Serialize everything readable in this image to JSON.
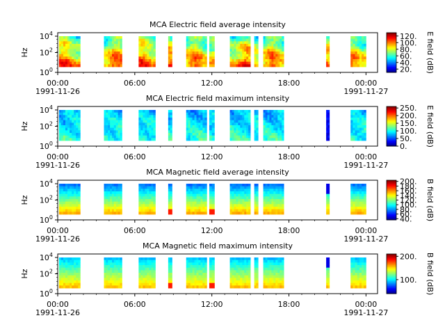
{
  "chart_data": [
    {
      "type": "heatmap",
      "title": "MCA  Electric field average intensity",
      "ylabel": "Hz",
      "y_ticks": [
        {
          "exp": "0"
        },
        {
          "exp": "2"
        },
        {
          "exp": "4"
        }
      ],
      "x_ticks": [
        "00:00",
        "06:00",
        "12:00",
        "18:00",
        "00:00"
      ],
      "date_start": "1991-11-26",
      "date_end": "1991-11-27",
      "colorbar": {
        "label": "E field (dB)",
        "range": [
          10,
          130
        ],
        "ticks": [
          "20.",
          "40.",
          "60.",
          "80.",
          "100.",
          "120."
        ],
        "tick_values": [
          20,
          40,
          60,
          80,
          100,
          120
        ]
      },
      "data_intervals_hours": [
        [
          0.1,
          1.75
        ],
        [
          3.6,
          5.0
        ],
        [
          6.3,
          7.6
        ],
        [
          8.6,
          8.9
        ],
        [
          10.0,
          11.6
        ],
        [
          11.8,
          12.2
        ],
        [
          13.4,
          15.0
        ],
        [
          15.3,
          15.6
        ],
        [
          16.0,
          17.6
        ],
        [
          20.9,
          21.15
        ],
        [
          22.8,
          24.0
        ]
      ],
      "style": "e-avg"
    },
    {
      "type": "heatmap",
      "title": "MCA  Electric field maximum intensity",
      "ylabel": "Hz",
      "y_ticks": [
        {
          "exp": "0"
        },
        {
          "exp": "2"
        },
        {
          "exp": "4"
        }
      ],
      "x_ticks": [
        "00:00",
        "06:00",
        "12:00",
        "18:00",
        "00:00"
      ],
      "date_start": "1991-11-26",
      "date_end": "1991-11-27",
      "colorbar": {
        "label": "E field (dB)",
        "range": [
          0,
          260
        ],
        "ticks": [
          "0.",
          "50.",
          "100.",
          "150.",
          "200.",
          "250."
        ],
        "tick_values": [
          0,
          50,
          100,
          150,
          200,
          250
        ]
      },
      "data_intervals_hours": [
        [
          0.1,
          1.75
        ],
        [
          3.6,
          5.0
        ],
        [
          6.3,
          7.6
        ],
        [
          8.6,
          8.9
        ],
        [
          10.0,
          11.6
        ],
        [
          11.8,
          12.2
        ],
        [
          13.4,
          15.0
        ],
        [
          15.3,
          15.6
        ],
        [
          16.0,
          17.6
        ],
        [
          20.9,
          21.15
        ],
        [
          22.8,
          24.0
        ]
      ],
      "style": "e-max"
    },
    {
      "type": "heatmap",
      "title": "MCA  Magnetic field average intensity",
      "ylabel": "Hz",
      "y_ticks": [
        {
          "exp": "0"
        },
        {
          "exp": "2"
        },
        {
          "exp": "4"
        }
      ],
      "x_ticks": [
        "00:00",
        "06:00",
        "12:00",
        "18:00",
        "00:00"
      ],
      "date_start": "1991-11-26",
      "date_end": "1991-11-27",
      "colorbar": {
        "label": "B field (dB)",
        "range": [
          35,
          205
        ],
        "ticks": [
          "40.",
          "60.",
          "80.",
          "100.",
          "120.",
          "140.",
          "160.",
          "180.",
          "200."
        ],
        "tick_values": [
          40,
          60,
          80,
          100,
          120,
          140,
          160,
          180,
          200
        ]
      },
      "data_intervals_hours": [
        [
          0.1,
          1.75
        ],
        [
          3.6,
          5.0
        ],
        [
          6.3,
          7.6
        ],
        [
          8.6,
          8.9
        ],
        [
          10.0,
          11.6
        ],
        [
          11.8,
          12.2
        ],
        [
          13.4,
          15.0
        ],
        [
          15.3,
          15.6
        ],
        [
          16.0,
          17.6
        ],
        [
          20.9,
          21.15
        ],
        [
          22.8,
          24.0
        ]
      ],
      "style": "b-avg"
    },
    {
      "type": "heatmap",
      "title": "MCA  Magnetic field maximum intensity",
      "ylabel": "Hz",
      "y_ticks": [
        {
          "exp": "0"
        },
        {
          "exp": "2"
        },
        {
          "exp": "4"
        }
      ],
      "x_ticks": [
        "00:00",
        "06:00",
        "12:00",
        "18:00",
        "00:00"
      ],
      "date_start": "1991-11-26",
      "date_end": "1991-11-27",
      "colorbar": {
        "label": "B field (dB)",
        "range": [
          40,
          210
        ],
        "ticks": [
          "100.",
          "200."
        ],
        "tick_values": [
          100,
          200
        ]
      },
      "data_intervals_hours": [
        [
          0.1,
          1.75
        ],
        [
          3.6,
          5.0
        ],
        [
          6.3,
          7.6
        ],
        [
          8.6,
          8.9
        ],
        [
          10.0,
          11.6
        ],
        [
          11.8,
          12.2
        ],
        [
          13.4,
          15.0
        ],
        [
          15.3,
          15.6
        ],
        [
          16.0,
          17.6
        ],
        [
          20.9,
          21.15
        ],
        [
          22.8,
          24.0
        ]
      ],
      "style": "b-max"
    }
  ]
}
